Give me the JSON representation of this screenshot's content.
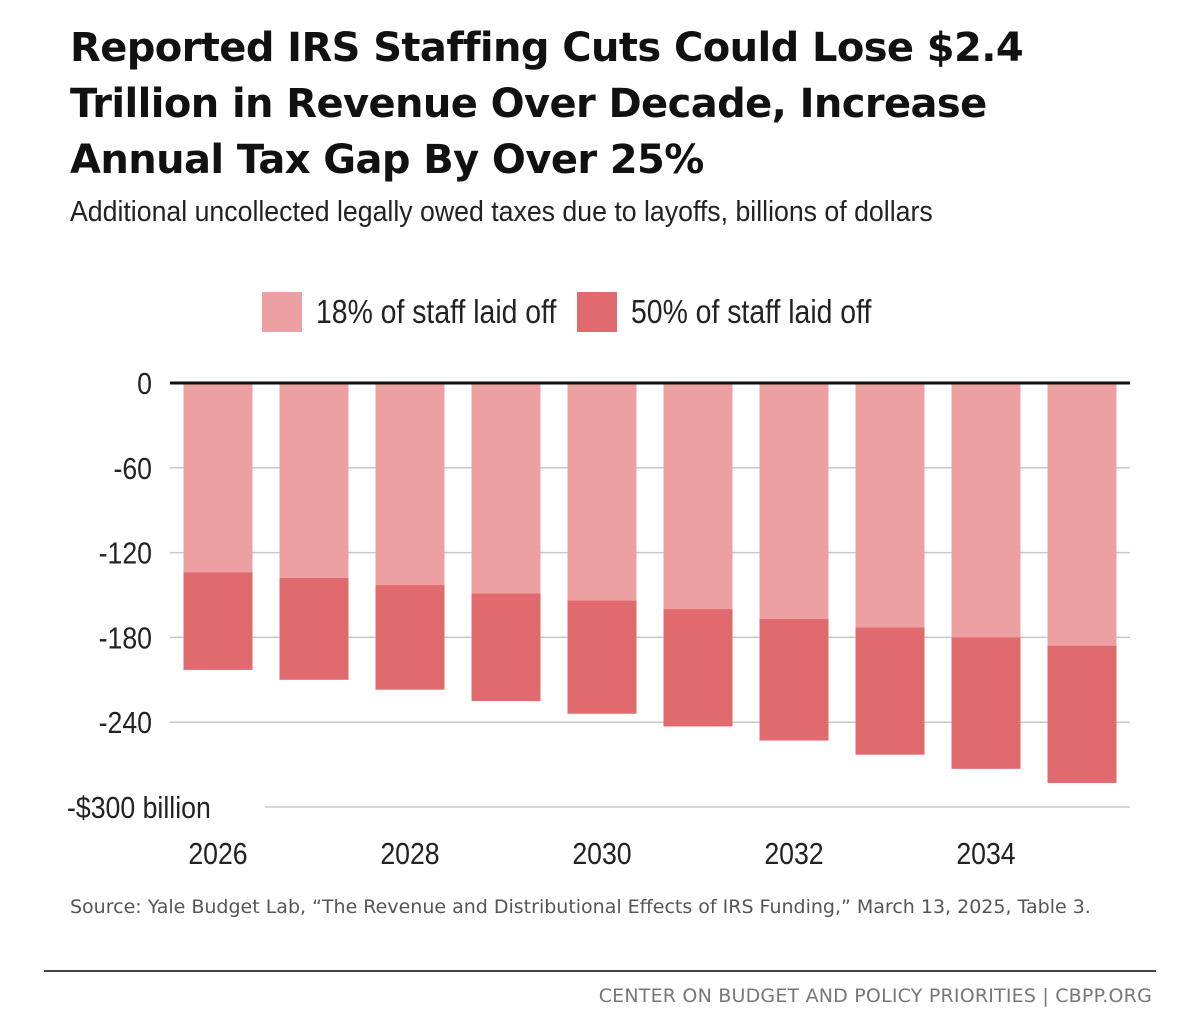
{
  "header": {
    "title": "Reported IRS Staffing Cuts Could Lose $2.4 Trillion in Revenue Over Decade, Increase Annual Tax Gap By Over 25%",
    "subtitle": "Additional uncollected legally owed taxes due to layoffs, billions of dollars"
  },
  "colors": {
    "series_18": "#eca0a2",
    "series_50": "#e06a6e",
    "grid": "#c8c8c8",
    "zero_line": "#111111",
    "text": "#222222"
  },
  "chart_data": {
    "type": "bar",
    "stacked": false,
    "overlapping": true,
    "title": "",
    "xlabel": "",
    "ylabel": "",
    "ylim": [
      -300,
      0
    ],
    "yticks": [
      0,
      -60,
      -120,
      -180,
      -240,
      -300
    ],
    "ytick_labels": [
      "0",
      "-60",
      "-120",
      "-180",
      "-240",
      "-$300 billion"
    ],
    "categories": [
      "2026",
      "2027",
      "2028",
      "2029",
      "2030",
      "2031",
      "2032",
      "2033",
      "2034",
      "2035"
    ],
    "xtick_labels": [
      {
        "index": 0,
        "label": "2026"
      },
      {
        "index": 2,
        "label": "2028"
      },
      {
        "index": 4,
        "label": "2030"
      },
      {
        "index": 6,
        "label": "2032"
      },
      {
        "index": 8,
        "label": "2034"
      }
    ],
    "grid": true,
    "legend_position": "top",
    "series": [
      {
        "name": "18% of staff laid off",
        "color_key": "series_18",
        "values": [
          -134,
          -138,
          -143,
          -149,
          -154,
          -160,
          -167,
          -173,
          -180,
          -186
        ]
      },
      {
        "name": "50% of staff laid off",
        "color_key": "series_50",
        "values": [
          -203,
          -210,
          -217,
          -225,
          -234,
          -243,
          -253,
          -263,
          -273,
          -283
        ]
      }
    ]
  },
  "source": {
    "text": "Source: Yale Budget Lab, “The Revenue and Distributional Effects of IRS Funding,” March 13, 2025, Table 3."
  },
  "footer": {
    "org": "CENTER ON BUDGET AND POLICY PRIORITIES | CBPP.ORG"
  }
}
